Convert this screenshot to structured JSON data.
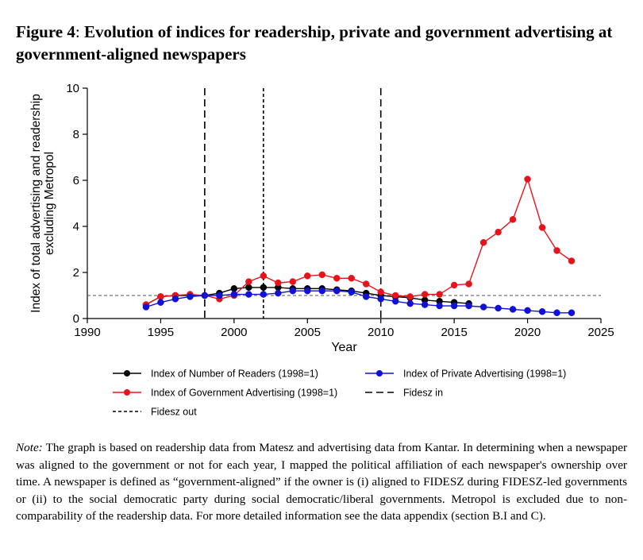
{
  "figure": {
    "label": "Figure 4",
    "separator": ":",
    "title": "Evolution of indices for readership, private and government advertising at government-aligned newspapers"
  },
  "note": {
    "label": "Note:",
    "text": "The graph is based on readership data from Matesz and advertising data from Kantar. In determining when a newspaper was aligned to the government or not for each year, I mapped the political affiliation of each newspaper's ownership over time. A newspaper is defined as “government-aligned” if the owner is (i) aligned to FIDESZ during FIDESZ-led governments or (ii) to the social democratic party during social democratic/liberal governments. Metropol is excluded due to non-comparability of the readership data. For more detailed information see the data appendix (section B.I and C)."
  },
  "colors": {
    "readers": "#000000",
    "government": "#e8121b",
    "private": "#1010d6",
    "reference": "#555555"
  },
  "chart_data": {
    "type": "line",
    "xlabel": "Year",
    "ylabel_lines": [
      "Index of total advertising and readership",
      "excluding Metropol"
    ],
    "xlim": [
      1990,
      2025
    ],
    "ylim": [
      0,
      10
    ],
    "xticks": [
      1990,
      1995,
      2000,
      2005,
      2010,
      2015,
      2020,
      2025
    ],
    "yticks": [
      0,
      2,
      4,
      6,
      8,
      10
    ],
    "grid": false,
    "reference_line_y": 1,
    "vertical_lines": [
      {
        "x": 1998,
        "style": "long-dash",
        "legend": "Fidesz in"
      },
      {
        "x": 2002,
        "style": "short-dash",
        "legend": "Fidesz out"
      },
      {
        "x": 2010,
        "style": "long-dash",
        "legend": "Fidesz in"
      }
    ],
    "series": [
      {
        "name": "Index of Number of Readers (1998=1)",
        "color": "#000000",
        "x": [
          1994,
          1995,
          1996,
          1997,
          1998,
          1999,
          2000,
          2001,
          2002,
          2003,
          2004,
          2005,
          2006,
          2007,
          2008,
          2009,
          2010,
          2011,
          2012,
          2013,
          2014,
          2015,
          2016
        ],
        "y": [
          0.6,
          0.95,
          1.0,
          1.0,
          1.0,
          1.1,
          1.3,
          1.35,
          1.35,
          1.35,
          1.3,
          1.3,
          1.3,
          1.25,
          1.2,
          1.1,
          1.0,
          0.95,
          0.9,
          0.8,
          0.75,
          0.7,
          0.65
        ]
      },
      {
        "name": "Index of Government Advertising (1998=1)",
        "color": "#e8121b",
        "x": [
          1994,
          1995,
          1996,
          1997,
          1998,
          1999,
          2000,
          2001,
          2002,
          2003,
          2004,
          2005,
          2006,
          2007,
          2008,
          2009,
          2010,
          2011,
          2012,
          2013,
          2014,
          2015,
          2016,
          2017,
          2018,
          2019,
          2020,
          2021,
          2022,
          2023
        ],
        "y": [
          0.6,
          0.95,
          1.0,
          1.05,
          1.0,
          0.85,
          1.0,
          1.6,
          1.85,
          1.55,
          1.6,
          1.85,
          1.9,
          1.75,
          1.75,
          1.5,
          1.15,
          1.0,
          0.95,
          1.05,
          1.05,
          1.45,
          1.5,
          3.3,
          3.75,
          4.3,
          6.05,
          3.95,
          2.95,
          2.5
        ]
      },
      {
        "name": "Index of Private Advertising (1998=1)",
        "color": "#1010d6",
        "x": [
          1994,
          1995,
          1996,
          1997,
          1998,
          1999,
          2000,
          2001,
          2002,
          2003,
          2004,
          2005,
          2006,
          2007,
          2008,
          2009,
          2010,
          2011,
          2012,
          2013,
          2014,
          2015,
          2016,
          2017,
          2018,
          2019,
          2020,
          2021,
          2022,
          2023
        ],
        "y": [
          0.5,
          0.7,
          0.85,
          0.95,
          1.0,
          1.0,
          1.05,
          1.05,
          1.05,
          1.1,
          1.2,
          1.2,
          1.2,
          1.2,
          1.15,
          0.95,
          0.85,
          0.75,
          0.65,
          0.6,
          0.55,
          0.55,
          0.55,
          0.5,
          0.45,
          0.4,
          0.35,
          0.3,
          0.25,
          0.25
        ]
      }
    ],
    "legend": [
      {
        "label": "Index of Number of Readers (1998=1)",
        "kind": "line-marker",
        "color": "#000000"
      },
      {
        "label": "Index of Private Advertising (1998=1)",
        "kind": "line-marker",
        "color": "#1010d6"
      },
      {
        "label": "Index of Government Advertising (1998=1)",
        "kind": "line-marker",
        "color": "#e8121b"
      },
      {
        "label": "Fidesz in",
        "kind": "long-dash",
        "color": "#000000"
      },
      {
        "label": "Fidesz out",
        "kind": "short-dash",
        "color": "#000000"
      }
    ],
    "legend_placement": "below"
  }
}
